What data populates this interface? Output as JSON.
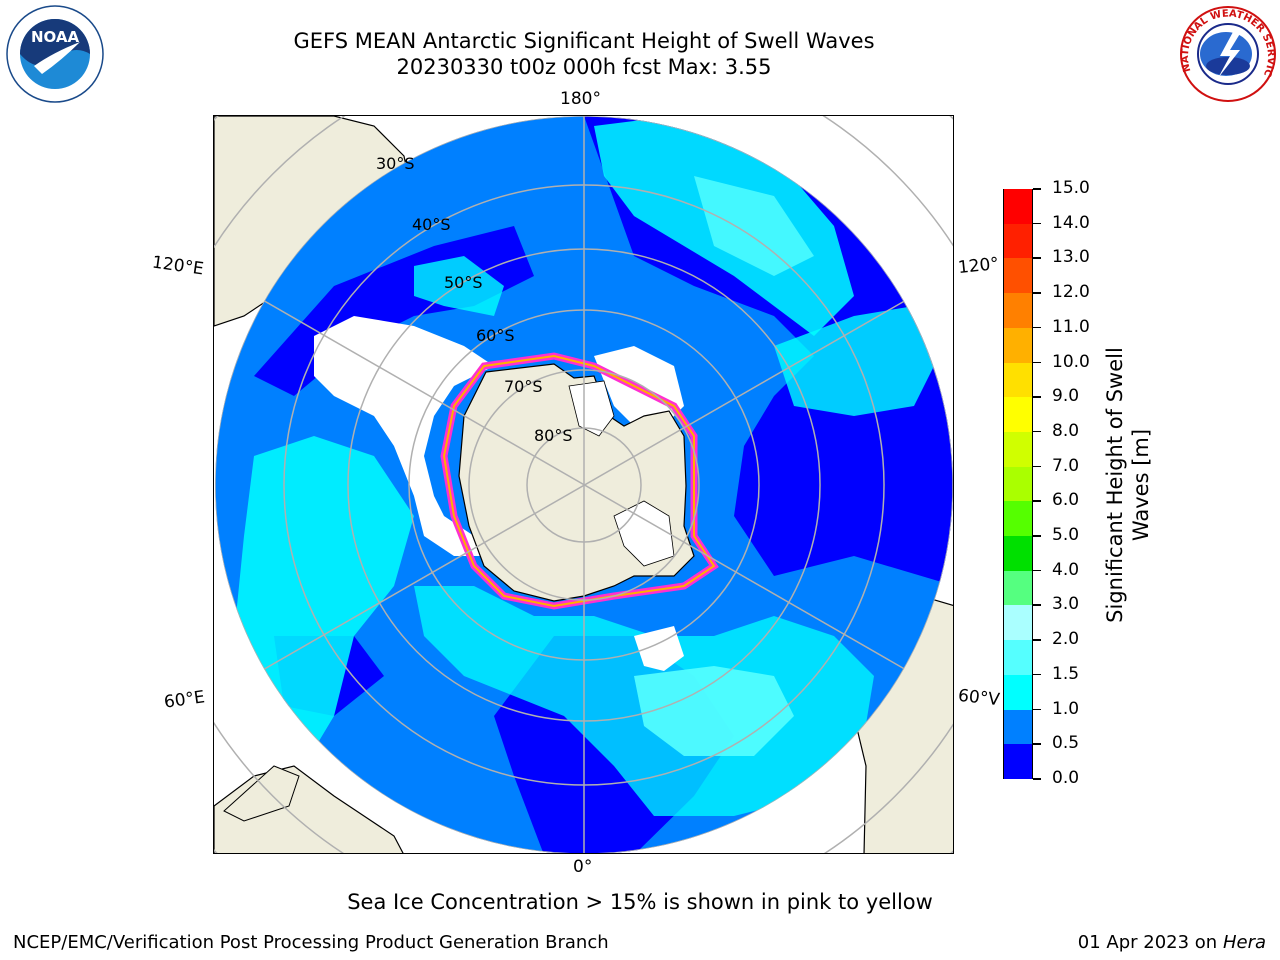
{
  "title": {
    "line1": "GEFS MEAN Antarctic Significant Height of Swell Waves",
    "line2": "20230330 t00z 000h fcst   Max: 3.55"
  },
  "logos": {
    "left": "noaa-logo",
    "right": "nws-logo"
  },
  "map": {
    "projection": "south-polar-stereographic",
    "longitude_labels": {
      "top": "180°",
      "bottom": "0°",
      "upper_left": "120°E",
      "lower_left": "60°E",
      "upper_right": "120°",
      "lower_right": "60°V"
    },
    "latitude_labels": [
      "30°S",
      "40°S",
      "50°S",
      "60°S",
      "70°S",
      "80°S"
    ],
    "colors": {
      "land": "#efeddc",
      "ocean_low": "#0000ff",
      "ocean_mid": "#0080ff",
      "ocean_high": "#00ffff",
      "ocean_peak": "#55ffff",
      "ice_edge": "#ff30d0",
      "ice_inner": "#ffb000",
      "grid": "#b0b0b0"
    }
  },
  "colorbar": {
    "label": "Significant Height of Swell Waves [m]",
    "label_line1": "Significant Height of Swell",
    "label_line2": "Waves [m]",
    "ticks": [
      "0.0",
      "0.5",
      "1.0",
      "1.5",
      "2.0",
      "3.0",
      "4.0",
      "5.0",
      "6.0",
      "7.0",
      "8.0",
      "9.0",
      "10.0",
      "11.0",
      "12.0",
      "13.0",
      "14.0",
      "15.0"
    ],
    "colors": [
      "#0000ff",
      "#0080ff",
      "#00ffff",
      "#55ffff",
      "#aaffff",
      "#55ff80",
      "#00e000",
      "#55ff00",
      "#aaff00",
      "#d0ff00",
      "#ffff00",
      "#ffe000",
      "#ffb000",
      "#ff8000",
      "#ff5000",
      "#ff2000",
      "#ff0000"
    ]
  },
  "note": "Sea Ice Concentration > 15% is shown in pink to yellow",
  "footer": {
    "credit": "NCEP/EMC/Verification Post Processing Product Generation Branch",
    "date": "01 Apr 2023 on",
    "machine": "Hera"
  }
}
